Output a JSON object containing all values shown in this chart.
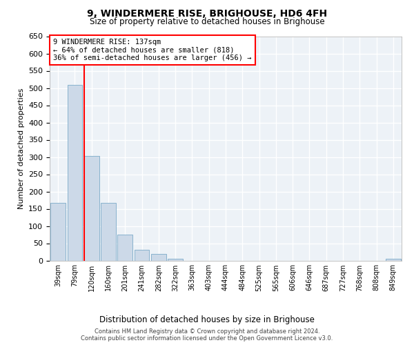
{
  "title": "9, WINDERMERE RISE, BRIGHOUSE, HD6 4FH",
  "subtitle": "Size of property relative to detached houses in Brighouse",
  "xlabel_bottom": "Distribution of detached houses by size in Brighouse",
  "ylabel": "Number of detached properties",
  "bar_color": "#ccd9e8",
  "bar_edge_color": "#7aaac8",
  "categories": [
    "39sqm",
    "79sqm",
    "120sqm",
    "160sqm",
    "201sqm",
    "241sqm",
    "282sqm",
    "322sqm",
    "363sqm",
    "403sqm",
    "444sqm",
    "484sqm",
    "525sqm",
    "565sqm",
    "606sqm",
    "646sqm",
    "687sqm",
    "727sqm",
    "768sqm",
    "808sqm",
    "849sqm"
  ],
  "values": [
    168,
    510,
    303,
    168,
    76,
    32,
    20,
    5,
    0,
    0,
    0,
    0,
    0,
    0,
    0,
    0,
    0,
    0,
    0,
    0,
    5
  ],
  "ylim": [
    0,
    650
  ],
  "yticks": [
    0,
    50,
    100,
    150,
    200,
    250,
    300,
    350,
    400,
    450,
    500,
    550,
    600,
    650
  ],
  "vline_x_index": 2,
  "annotation_line1": "9 WINDERMERE RISE: 137sqm",
  "annotation_line2": "← 64% of detached houses are smaller (818)",
  "annotation_line3": "36% of semi-detached houses are larger (456) →",
  "marker_color": "red",
  "footer_line1": "Contains HM Land Registry data © Crown copyright and database right 2024.",
  "footer_line2": "Contains public sector information licensed under the Open Government Licence v3.0.",
  "background_color": "#edf2f7",
  "grid_color": "white"
}
